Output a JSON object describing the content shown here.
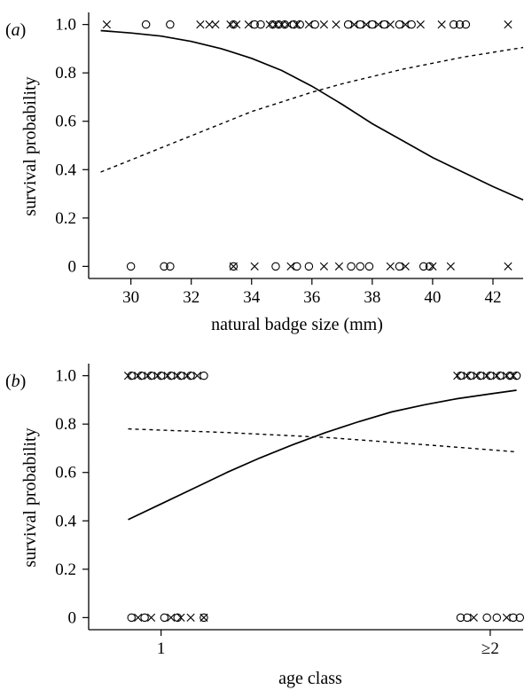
{
  "chart_data": [
    {
      "panel_label": "a",
      "type": "scatter",
      "xlabel": "natural badge size (mm)",
      "ylabel": "survival probability",
      "xlim": [
        28.6,
        43.0
      ],
      "ylim": [
        -0.05,
        1.05
      ],
      "x_ticks": [
        30,
        32,
        34,
        36,
        38,
        40,
        42
      ],
      "y_ticks": [
        0,
        0.2,
        0.4,
        0.6,
        0.8,
        1.0
      ],
      "y_tick_labels": [
        "0",
        "0.2",
        "0.4",
        "0.6",
        "0.8",
        "1.0"
      ],
      "curves": [
        {
          "style": "solid",
          "x": [
            29.0,
            30.0,
            31.0,
            32.0,
            33.0,
            34.0,
            35.0,
            36.0,
            37.0,
            38.0,
            39.0,
            40.0,
            41.0,
            42.0,
            43.0
          ],
          "y": [
            0.975,
            0.965,
            0.952,
            0.93,
            0.9,
            0.86,
            0.81,
            0.745,
            0.67,
            0.59,
            0.52,
            0.45,
            0.39,
            0.33,
            0.275
          ]
        },
        {
          "style": "dashed",
          "x": [
            29.0,
            30.0,
            31.0,
            32.0,
            33.0,
            34.0,
            35.0,
            36.0,
            37.0,
            38.0,
            39.0,
            40.0,
            41.0,
            42.0,
            43.0
          ],
          "y": [
            0.39,
            0.44,
            0.49,
            0.54,
            0.59,
            0.64,
            0.68,
            0.72,
            0.755,
            0.785,
            0.815,
            0.84,
            0.865,
            0.885,
            0.905
          ]
        }
      ],
      "points": [
        {
          "m": "x",
          "x": 29.2,
          "y": 1
        },
        {
          "m": "o",
          "x": 30.5,
          "y": 1
        },
        {
          "m": "o",
          "x": 31.3,
          "y": 1
        },
        {
          "m": "x",
          "x": 32.3,
          "y": 1
        },
        {
          "m": "x",
          "x": 32.6,
          "y": 1
        },
        {
          "m": "x",
          "x": 32.8,
          "y": 1
        },
        {
          "m": "x",
          "x": 33.3,
          "y": 1
        },
        {
          "m": "x",
          "x": 33.5,
          "y": 1
        },
        {
          "m": "o",
          "x": 33.4,
          "y": 1
        },
        {
          "m": "x",
          "x": 33.9,
          "y": 1
        },
        {
          "m": "o",
          "x": 34.1,
          "y": 1
        },
        {
          "m": "o",
          "x": 34.3,
          "y": 1
        },
        {
          "m": "x",
          "x": 34.6,
          "y": 1
        },
        {
          "m": "o",
          "x": 34.7,
          "y": 1
        },
        {
          "m": "x",
          "x": 34.8,
          "y": 1
        },
        {
          "m": "o",
          "x": 34.9,
          "y": 1
        },
        {
          "m": "x",
          "x": 35.0,
          "y": 1
        },
        {
          "m": "o",
          "x": 35.1,
          "y": 1
        },
        {
          "m": "x",
          "x": 35.2,
          "y": 1
        },
        {
          "m": "o",
          "x": 35.4,
          "y": 1
        },
        {
          "m": "x",
          "x": 35.5,
          "y": 1
        },
        {
          "m": "o",
          "x": 35.6,
          "y": 1
        },
        {
          "m": "x",
          "x": 35.9,
          "y": 1
        },
        {
          "m": "o",
          "x": 36.1,
          "y": 1
        },
        {
          "m": "x",
          "x": 36.4,
          "y": 1
        },
        {
          "m": "x",
          "x": 36.8,
          "y": 1
        },
        {
          "m": "o",
          "x": 37.2,
          "y": 1
        },
        {
          "m": "x",
          "x": 37.4,
          "y": 1
        },
        {
          "m": "o",
          "x": 37.6,
          "y": 1
        },
        {
          "m": "x",
          "x": 37.8,
          "y": 1
        },
        {
          "m": "o",
          "x": 38.0,
          "y": 1
        },
        {
          "m": "x",
          "x": 38.2,
          "y": 1
        },
        {
          "m": "o",
          "x": 38.4,
          "y": 1
        },
        {
          "m": "x",
          "x": 38.6,
          "y": 1
        },
        {
          "m": "o",
          "x": 38.9,
          "y": 1
        },
        {
          "m": "x",
          "x": 39.1,
          "y": 1
        },
        {
          "m": "o",
          "x": 39.3,
          "y": 1
        },
        {
          "m": "x",
          "x": 39.6,
          "y": 1
        },
        {
          "m": "x",
          "x": 40.3,
          "y": 1
        },
        {
          "m": "o",
          "x": 40.7,
          "y": 1
        },
        {
          "m": "o",
          "x": 40.9,
          "y": 1
        },
        {
          "m": "o",
          "x": 41.1,
          "y": 1
        },
        {
          "m": "x",
          "x": 42.5,
          "y": 1
        },
        {
          "m": "o",
          "x": 30.0,
          "y": 0
        },
        {
          "m": "o",
          "x": 31.1,
          "y": 0
        },
        {
          "m": "o",
          "x": 31.3,
          "y": 0
        },
        {
          "m": "o",
          "x": 33.4,
          "y": 0
        },
        {
          "m": "x",
          "x": 33.4,
          "y": 0
        },
        {
          "m": "x",
          "x": 34.1,
          "y": 0
        },
        {
          "m": "o",
          "x": 34.8,
          "y": 0
        },
        {
          "m": "x",
          "x": 35.3,
          "y": 0
        },
        {
          "m": "o",
          "x": 35.5,
          "y": 0
        },
        {
          "m": "o",
          "x": 35.9,
          "y": 0
        },
        {
          "m": "x",
          "x": 36.4,
          "y": 0
        },
        {
          "m": "x",
          "x": 36.9,
          "y": 0
        },
        {
          "m": "o",
          "x": 37.3,
          "y": 0
        },
        {
          "m": "o",
          "x": 37.6,
          "y": 0
        },
        {
          "m": "o",
          "x": 37.9,
          "y": 0
        },
        {
          "m": "x",
          "x": 38.6,
          "y": 0
        },
        {
          "m": "o",
          "x": 38.9,
          "y": 0
        },
        {
          "m": "x",
          "x": 39.1,
          "y": 0
        },
        {
          "m": "o",
          "x": 39.7,
          "y": 0
        },
        {
          "m": "o",
          "x": 39.9,
          "y": 0
        },
        {
          "m": "x",
          "x": 40.0,
          "y": 0
        },
        {
          "m": "x",
          "x": 40.6,
          "y": 0
        },
        {
          "m": "x",
          "x": 42.5,
          "y": 0
        }
      ]
    },
    {
      "panel_label": "b",
      "type": "scatter",
      "xlabel": "age class",
      "ylabel": "survival probability",
      "xlim": [
        0.78,
        2.1
      ],
      "ylim": [
        -0.05,
        1.05
      ],
      "x_ticks": [
        1,
        2
      ],
      "x_tick_labels": [
        "1",
        "≥2"
      ],
      "y_ticks": [
        0,
        0.2,
        0.4,
        0.6,
        0.8,
        1.0
      ],
      "y_tick_labels": [
        "0",
        "0.2",
        "0.4",
        "0.6",
        "0.8",
        "1.0"
      ],
      "curves": [
        {
          "style": "solid",
          "x": [
            0.9,
            1.0,
            1.1,
            1.2,
            1.3,
            1.4,
            1.5,
            1.6,
            1.7,
            1.8,
            1.9,
            2.0,
            2.08
          ],
          "y": [
            0.405,
            0.47,
            0.535,
            0.6,
            0.66,
            0.715,
            0.765,
            0.81,
            0.85,
            0.88,
            0.905,
            0.925,
            0.94
          ]
        },
        {
          "style": "dashed",
          "x": [
            0.9,
            1.2,
            1.5,
            1.8,
            2.08
          ],
          "y": [
            0.78,
            0.765,
            0.745,
            0.715,
            0.685
          ]
        }
      ],
      "points": [
        {
          "m": "x",
          "x": 0.9,
          "y": 1
        },
        {
          "m": "o",
          "x": 0.91,
          "y": 1
        },
        {
          "m": "x",
          "x": 0.93,
          "y": 1
        },
        {
          "m": "o",
          "x": 0.94,
          "y": 1
        },
        {
          "m": "x",
          "x": 0.96,
          "y": 1
        },
        {
          "m": "o",
          "x": 0.97,
          "y": 1
        },
        {
          "m": "x",
          "x": 0.99,
          "y": 1
        },
        {
          "m": "o",
          "x": 1.0,
          "y": 1
        },
        {
          "m": "x",
          "x": 1.02,
          "y": 1
        },
        {
          "m": "o",
          "x": 1.03,
          "y": 1
        },
        {
          "m": "x",
          "x": 1.05,
          "y": 1
        },
        {
          "m": "o",
          "x": 1.06,
          "y": 1
        },
        {
          "m": "x",
          "x": 1.08,
          "y": 1
        },
        {
          "m": "o",
          "x": 1.09,
          "y": 1
        },
        {
          "m": "x",
          "x": 1.11,
          "y": 1
        },
        {
          "m": "o",
          "x": 1.13,
          "y": 1
        },
        {
          "m": "x",
          "x": 1.9,
          "y": 1
        },
        {
          "m": "o",
          "x": 1.91,
          "y": 1
        },
        {
          "m": "x",
          "x": 1.93,
          "y": 1
        },
        {
          "m": "o",
          "x": 1.94,
          "y": 1
        },
        {
          "m": "x",
          "x": 1.96,
          "y": 1
        },
        {
          "m": "o",
          "x": 1.97,
          "y": 1
        },
        {
          "m": "x",
          "x": 1.99,
          "y": 1
        },
        {
          "m": "o",
          "x": 2.0,
          "y": 1
        },
        {
          "m": "x",
          "x": 2.02,
          "y": 1
        },
        {
          "m": "o",
          "x": 2.03,
          "y": 1
        },
        {
          "m": "x",
          "x": 2.05,
          "y": 1
        },
        {
          "m": "o",
          "x": 2.06,
          "y": 1
        },
        {
          "m": "x",
          "x": 2.07,
          "y": 1
        },
        {
          "m": "o",
          "x": 2.08,
          "y": 1
        },
        {
          "m": "o",
          "x": 0.91,
          "y": 0
        },
        {
          "m": "x",
          "x": 0.93,
          "y": 0
        },
        {
          "m": "o",
          "x": 0.95,
          "y": 0
        },
        {
          "m": "x",
          "x": 0.97,
          "y": 0
        },
        {
          "m": "o",
          "x": 1.01,
          "y": 0
        },
        {
          "m": "x",
          "x": 1.03,
          "y": 0
        },
        {
          "m": "o",
          "x": 1.05,
          "y": 0
        },
        {
          "m": "x",
          "x": 1.06,
          "y": 0
        },
        {
          "m": "x",
          "x": 1.09,
          "y": 0
        },
        {
          "m": "o",
          "x": 1.13,
          "y": 0
        },
        {
          "m": "x",
          "x": 1.13,
          "y": 0
        },
        {
          "m": "o",
          "x": 1.91,
          "y": 0
        },
        {
          "m": "o",
          "x": 1.93,
          "y": 0
        },
        {
          "m": "x",
          "x": 1.95,
          "y": 0
        },
        {
          "m": "o",
          "x": 1.99,
          "y": 0
        },
        {
          "m": "o",
          "x": 2.02,
          "y": 0
        },
        {
          "m": "x",
          "x": 2.05,
          "y": 0
        },
        {
          "m": "o",
          "x": 2.07,
          "y": 0
        },
        {
          "m": "o",
          "x": 2.09,
          "y": 0
        }
      ]
    }
  ]
}
